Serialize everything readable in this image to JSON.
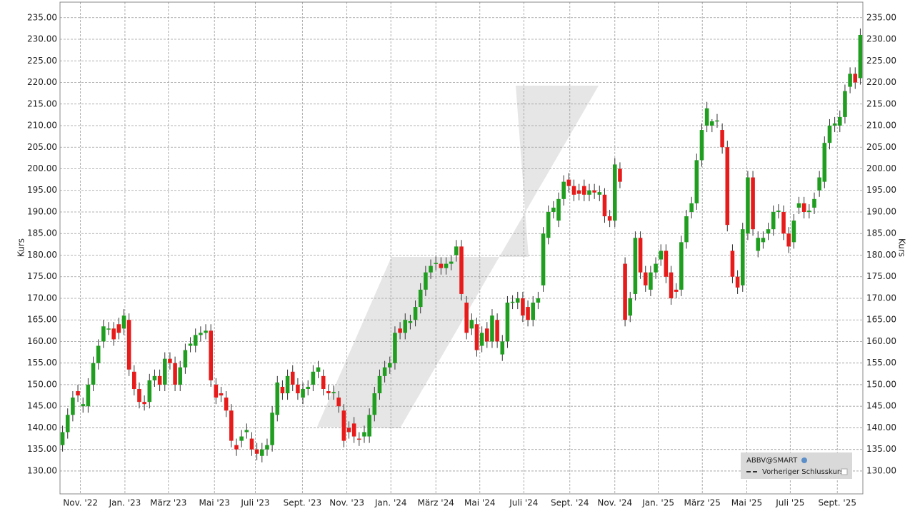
{
  "chart_data": {
    "type": "candlestick",
    "y_label": "Kurs",
    "legend_title": "ABBV@SMART",
    "legend_entry": "Vorheriger Schlusskurs",
    "up_color": "#1f9e1f",
    "down_color": "#e81b1b",
    "grid": true,
    "xlim": [
      -0.5,
      156.5
    ],
    "xticks": [
      {
        "value": 3.5,
        "label": "Nov. '22"
      },
      {
        "value": 12.2,
        "label": "Jan. '23"
      },
      {
        "value": 20.7,
        "label": "März '23"
      },
      {
        "value": 29.7,
        "label": "Mai '23"
      },
      {
        "value": 37.7,
        "label": "Juli '23"
      },
      {
        "value": 46.9,
        "label": "Sept. '23"
      },
      {
        "value": 55.6,
        "label": "Nov. '23"
      },
      {
        "value": 64.2,
        "label": "Jan. '24"
      },
      {
        "value": 73.0,
        "label": "März '24"
      },
      {
        "value": 81.6,
        "label": "Mai '24"
      },
      {
        "value": 90.2,
        "label": "Juli '24"
      },
      {
        "value": 99.2,
        "label": "Sept. '24"
      },
      {
        "value": 108.0,
        "label": "Nov. '24"
      },
      {
        "value": 116.5,
        "label": "Jan. '25"
      },
      {
        "value": 125.1,
        "label": "März '25"
      },
      {
        "value": 133.8,
        "label": "Mai '25"
      },
      {
        "value": 142.3,
        "label": "Juli '25"
      },
      {
        "value": 151.5,
        "label": "Sept. '25"
      }
    ],
    "ylim": [
      124.7,
      238.6
    ],
    "yticks": [
      {
        "value": 130,
        "label": "130.00"
      },
      {
        "value": 135,
        "label": "135.00"
      },
      {
        "value": 140,
        "label": "140.00"
      },
      {
        "value": 145,
        "label": "145.00"
      },
      {
        "value": 150,
        "label": "150.00"
      },
      {
        "value": 155,
        "label": "155.00"
      },
      {
        "value": 160,
        "label": "160.00"
      },
      {
        "value": 165,
        "label": "165.00"
      },
      {
        "value": 170,
        "label": "170.00"
      },
      {
        "value": 175,
        "label": "175.00"
      },
      {
        "value": 180,
        "label": "180.00"
      },
      {
        "value": 185,
        "label": "185.00"
      },
      {
        "value": 190,
        "label": "190.00"
      },
      {
        "value": 195,
        "label": "195.00"
      },
      {
        "value": 200,
        "label": "200.00"
      },
      {
        "value": 205,
        "label": "205.00"
      },
      {
        "value": 210,
        "label": "210.00"
      },
      {
        "value": 215,
        "label": "215.00"
      },
      {
        "value": 220,
        "label": "220.00"
      },
      {
        "value": 225,
        "label": "225.00"
      },
      {
        "value": 230,
        "label": "230.00"
      },
      {
        "value": 235,
        "label": "235.00"
      }
    ],
    "open": [
      136,
      139,
      143,
      148.5,
      145,
      145,
      150,
      155,
      160,
      163,
      163,
      164,
      163,
      165,
      153,
      149,
      146,
      146,
      151,
      152,
      150,
      156,
      155,
      150,
      154,
      159,
      159,
      161.5,
      162,
      162.5,
      150,
      148,
      147,
      144,
      136,
      137,
      139,
      137.5,
      135,
      133.5,
      135,
      136,
      143,
      149.5,
      148,
      153,
      150,
      147,
      149,
      150,
      153,
      152,
      148.5,
      148,
      147,
      144,
      140,
      141,
      137.5,
      138,
      138,
      143,
      148,
      152,
      154,
      155,
      163,
      162,
      164.3,
      165,
      168,
      172,
      176,
      178,
      178,
      177,
      178,
      180,
      182,
      169,
      163,
      164,
      159,
      163,
      160,
      165,
      157,
      160,
      169,
      169,
      170,
      168,
      165,
      169,
      173,
      184,
      190,
      188,
      193,
      197.5,
      196,
      195,
      196,
      194,
      195,
      194,
      194,
      189,
      188,
      200,
      178,
      166,
      171,
      184,
      176,
      172,
      176,
      179,
      181,
      176,
      172,
      172,
      183,
      190,
      192,
      202,
      210,
      210,
      211,
      209,
      205,
      181,
      175,
      173,
      185,
      198,
      181,
      183,
      185,
      186,
      190,
      190,
      185,
      183,
      191,
      192,
      190,
      191,
      195,
      197,
      206,
      210,
      210,
      212,
      219,
      222,
      221
    ],
    "high": [
      140.5,
      144.5,
      148.5,
      150,
      147,
      151.5,
      156.5,
      160.5,
      165,
      164.5,
      164.5,
      165.5,
      167.5,
      166.5,
      154.5,
      150.5,
      147.5,
      152.5,
      153.5,
      153.5,
      157.5,
      157.5,
      156.5,
      155.5,
      159.5,
      161,
      163,
      163.5,
      164,
      164,
      151.5,
      149.5,
      148.5,
      145.5,
      137.5,
      139.5,
      141,
      139,
      136.5,
      136.5,
      137.5,
      145,
      152,
      151,
      153.5,
      154.5,
      151.5,
      150.5,
      151,
      154.5,
      155.5,
      153.5,
      150,
      149.8,
      148.5,
      145.5,
      141.5,
      142.5,
      139,
      140.5,
      144.5,
      149.5,
      153.5,
      155.5,
      156.5,
      163.5,
      164.5,
      166.5,
      166.2,
      169.5,
      173.5,
      177.5,
      179,
      179.7,
      179.5,
      179.5,
      180,
      183.5,
      183.5,
      170.5,
      166.5,
      165.5,
      163.5,
      164.5,
      167.5,
      166.5,
      161.5,
      170.5,
      170.7,
      171.5,
      171.5,
      169.5,
      170.5,
      171.5,
      186.5,
      191.5,
      192.5,
      194.5,
      198.5,
      199,
      197.5,
      196.5,
      197.5,
      196.5,
      196.5,
      196.1,
      195.5,
      190.5,
      202.5,
      201.5,
      179.5,
      171.5,
      185.5,
      185.5,
      177.5,
      177.5,
      179.5,
      182.5,
      182.5,
      177.5,
      173.5,
      184.5,
      190.5,
      193.5,
      203.5,
      210.5,
      215.5,
      211.5,
      212.7,
      210.5,
      206.5,
      182.5,
      176.5,
      187.5,
      199.5,
      199.5,
      185.5,
      185.5,
      187.5,
      191.5,
      191.8,
      191.5,
      186.5,
      189.5,
      193.5,
      193.5,
      191.8,
      194.5,
      199.5,
      207.5,
      211.5,
      212,
      213.5,
      219.5,
      223.5,
      223.5,
      232.5
    ],
    "low": [
      134.5,
      137.5,
      141.5,
      146,
      143.5,
      143.5,
      148.5,
      153.5,
      158.5,
      161.5,
      159,
      160.5,
      161.5,
      152,
      147.5,
      144.5,
      144,
      144.5,
      149.5,
      148.5,
      148.5,
      153.5,
      148.5,
      148.5,
      152.5,
      157.5,
      157.5,
      160,
      160.5,
      149.5,
      145.5,
      146,
      142.5,
      135.5,
      133.5,
      135.5,
      137.5,
      133.5,
      132.5,
      132,
      133.5,
      134.5,
      141.5,
      146.5,
      146.5,
      148.5,
      146.5,
      145.5,
      147.5,
      148.5,
      151.5,
      147.5,
      146.5,
      146.5,
      143.5,
      135.5,
      137.5,
      136.5,
      135.8,
      136.5,
      136.5,
      141.5,
      146.5,
      150.5,
      152.5,
      153.5,
      160.5,
      160.5,
      162.8,
      163.5,
      166.5,
      170.5,
      174.5,
      176.5,
      175.5,
      175.5,
      176.5,
      178.5,
      169.5,
      160.5,
      161.5,
      156.5,
      157.5,
      158.5,
      158.5,
      158.5,
      155.5,
      158.5,
      167.5,
      167.5,
      164.5,
      163.5,
      163.5,
      167.5,
      171.5,
      182.5,
      188.5,
      186.5,
      191.5,
      194.5,
      192.5,
      192.7,
      192.5,
      192.5,
      193,
      192.5,
      187.5,
      186.5,
      186.5,
      195.5,
      163.5,
      164.5,
      169.5,
      174.5,
      171.5,
      170.5,
      174.5,
      177.5,
      173.5,
      168.5,
      170,
      170.5,
      181.5,
      188.5,
      190.5,
      200.5,
      208.5,
      208.5,
      209.5,
      203.5,
      185.5,
      173.5,
      171,
      171.5,
      183.5,
      184.5,
      179.5,
      181.5,
      183.5,
      184.5,
      188.5,
      183.5,
      180.5,
      181.5,
      189.5,
      188.5,
      188.5,
      189.5,
      193.5,
      195.5,
      204.5,
      208.5,
      208.5,
      210.5,
      217.5,
      218.5,
      219.5
    ],
    "close": [
      139,
      143,
      147,
      147.5,
      145.5,
      150,
      155,
      159,
      163.5,
      163,
      160.5,
      162,
      166,
      153.5,
      149,
      146,
      145.5,
      151,
      152,
      150,
      156,
      155,
      150,
      154,
      158,
      159.5,
      161.5,
      162,
      162.5,
      151,
      147,
      147.5,
      144,
      137,
      135,
      138,
      139.5,
      135,
      134,
      135,
      136,
      143.5,
      150.5,
      148,
      152,
      150,
      148,
      149,
      149.5,
      153,
      154,
      149,
      148,
      148.3,
      145,
      137,
      139,
      138,
      137.3,
      139,
      143,
      148,
      152,
      154,
      155,
      162,
      162,
      165,
      164.7,
      168,
      172,
      176,
      177.5,
      178.2,
      177,
      178,
      178.5,
      182,
      171,
      162,
      165,
      158,
      162,
      160,
      166,
      160,
      160,
      169,
      169.2,
      170,
      166,
      165,
      169,
      170,
      185,
      190,
      191,
      193,
      197,
      196,
      194,
      194.2,
      194,
      195,
      194.5,
      194.6,
      189,
      188,
      201,
      197,
      165,
      170,
      184,
      176,
      173,
      176,
      178,
      181,
      175,
      170,
      171.5,
      183,
      189,
      192,
      202,
      209,
      214,
      211,
      211.2,
      205,
      187,
      175,
      172.5,
      186,
      198,
      186,
      184,
      184,
      186,
      190,
      190.3,
      185,
      182,
      188,
      192,
      190,
      190.3,
      193,
      198,
      206,
      210,
      210.5,
      212,
      218,
      222,
      220,
      231
    ]
  }
}
